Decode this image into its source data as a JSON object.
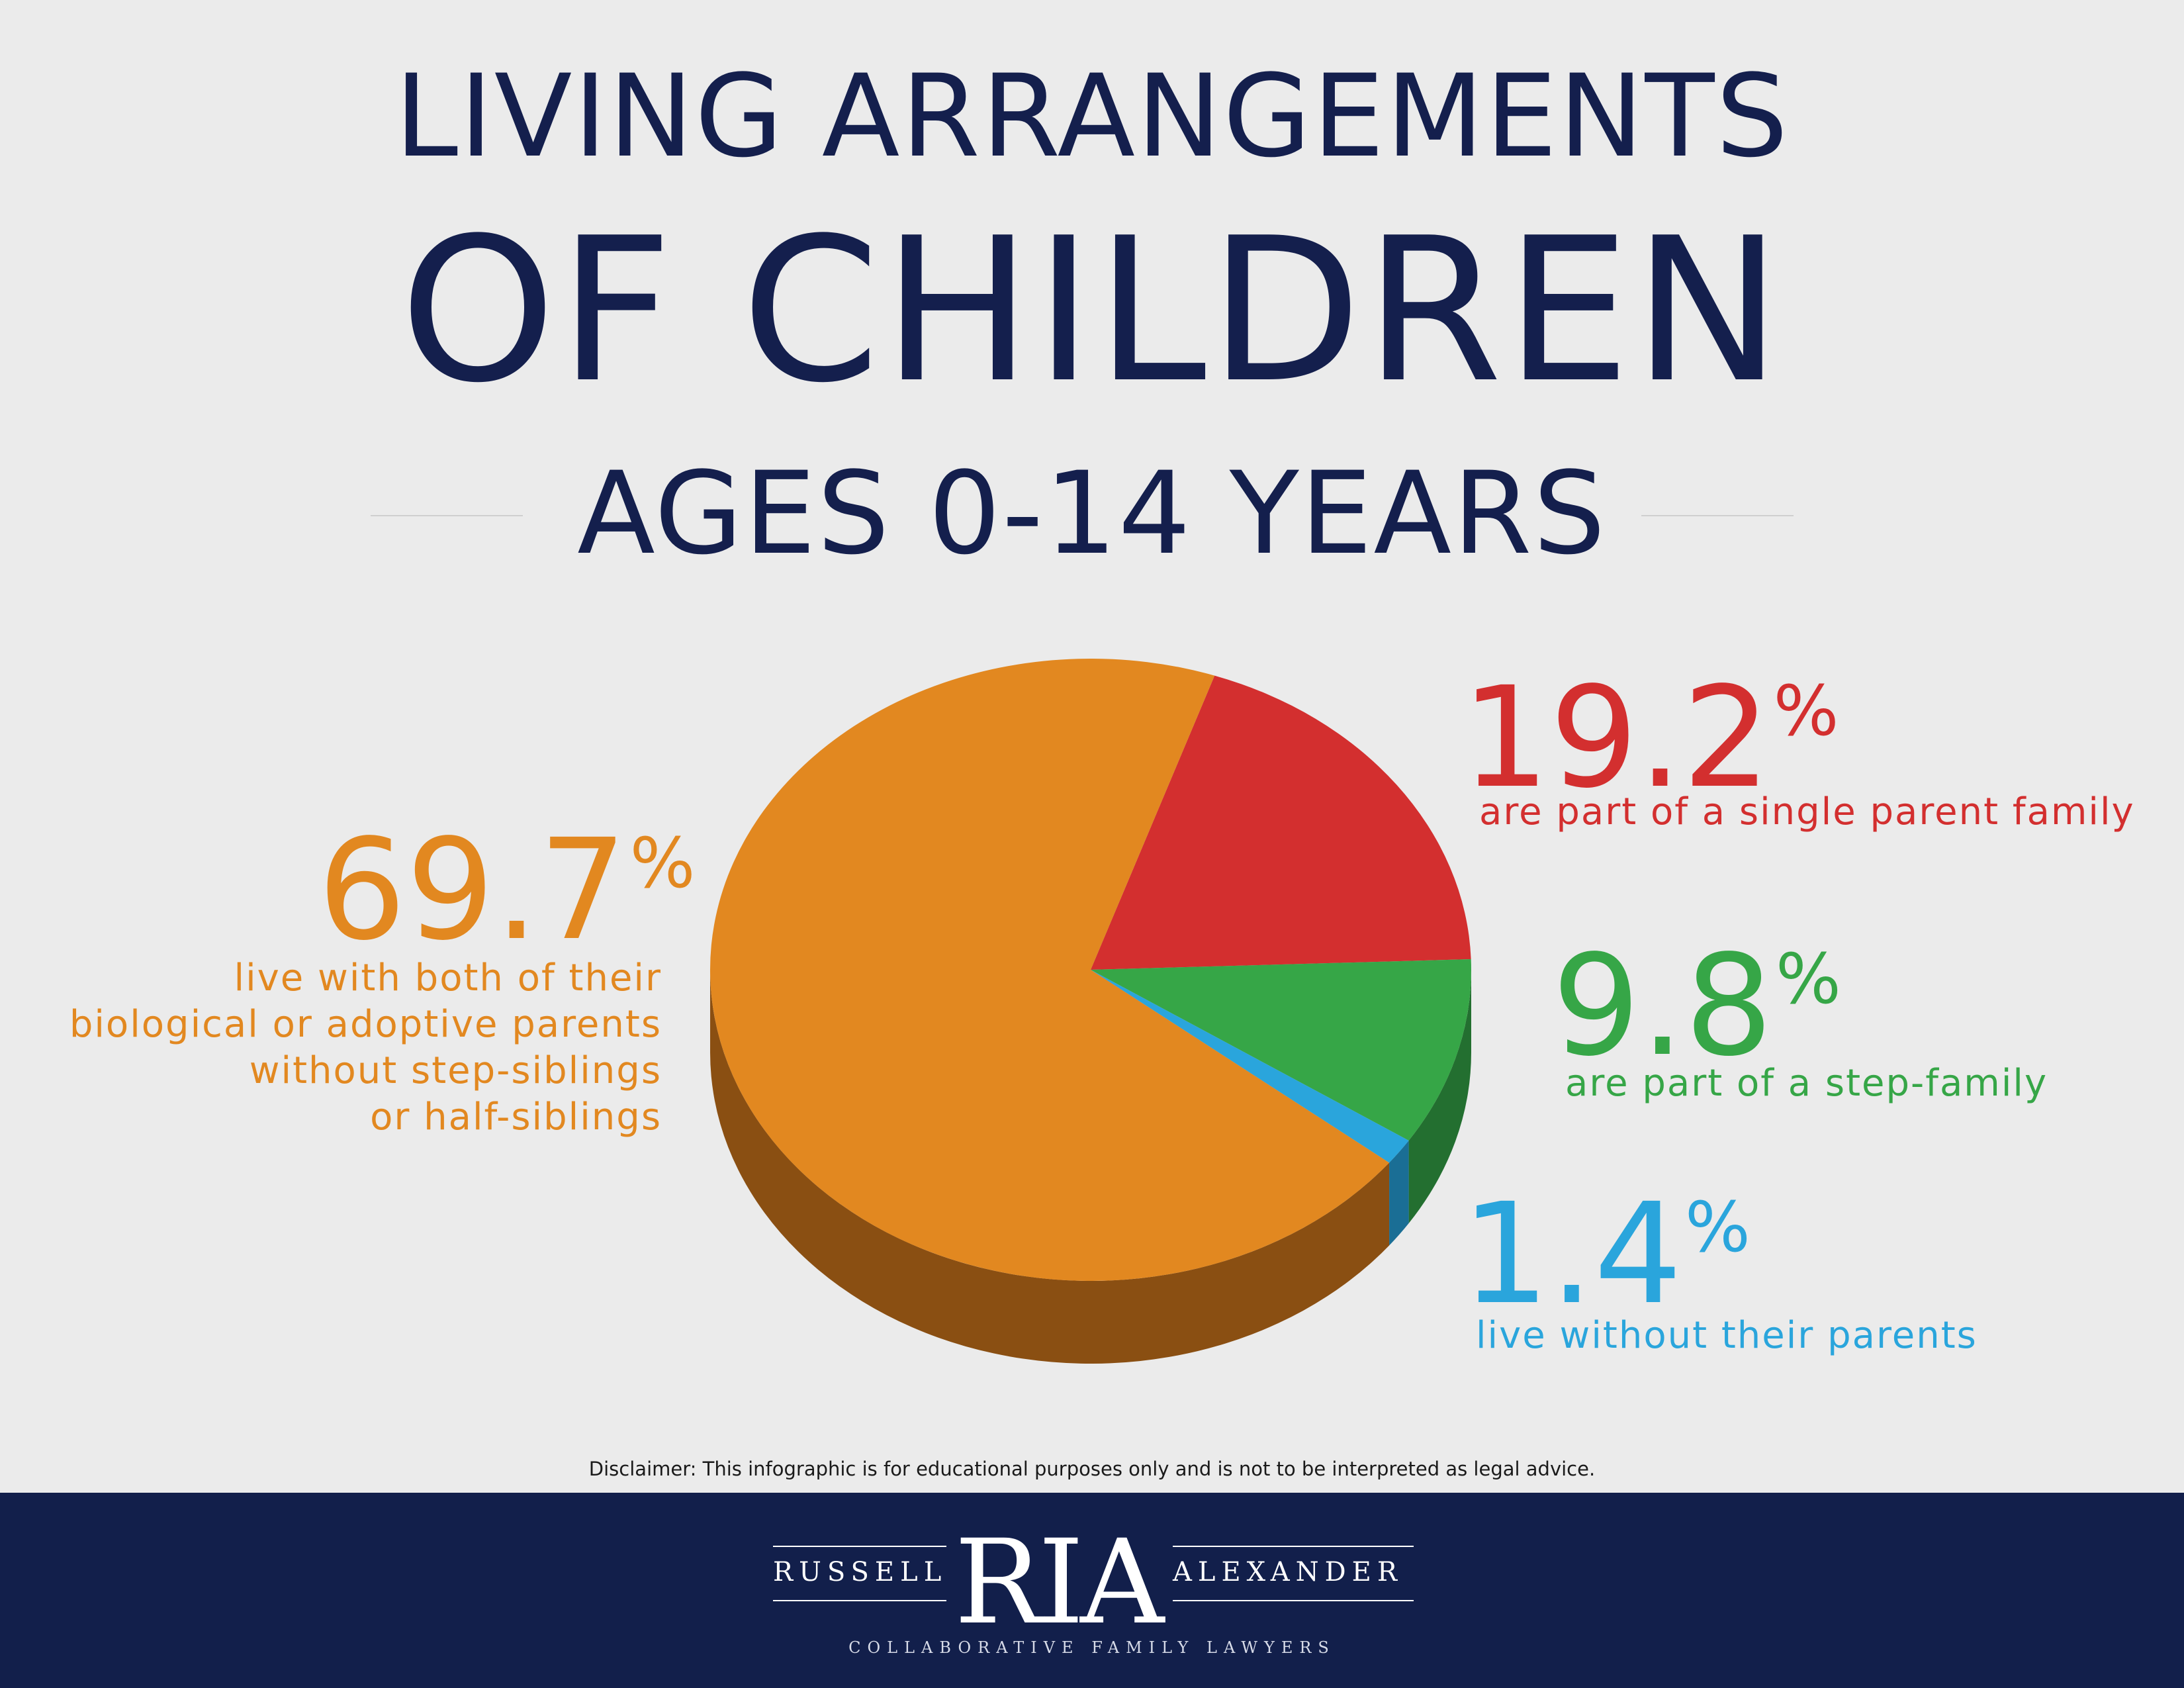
{
  "header": {
    "title_line1": "LIVING ARRANGEMENTS",
    "title_line2": "OF CHILDREN",
    "subtitle": "AGES 0-14 YEARS"
  },
  "colors": {
    "orange": "#e28820",
    "orange_side": "#8a4f12",
    "red": "#d32f2f",
    "red_side": "#8c1f1f",
    "green": "#36a647",
    "green_side": "#236f30",
    "blue": "#2aa5dc",
    "blue_side": "#1a6e95",
    "navy": "#121f4b"
  },
  "chart_data": {
    "type": "pie",
    "slices": [
      {
        "label": "live with both of their biological or adoptive parents without step-siblings or half-siblings",
        "value": 69.7,
        "color": "#e28820"
      },
      {
        "label": "are part of a single parent family",
        "value": 19.2,
        "color": "#d32f2f"
      },
      {
        "label": "are part of a step-family",
        "value": 9.8,
        "color": "#36a647"
      },
      {
        "label": "live without their parents",
        "value": 1.4,
        "color": "#2aa5dc"
      }
    ]
  },
  "callouts": {
    "orange": {
      "number": "69.7",
      "symbol": "%",
      "lines": [
        "live with both of their",
        "biological or adoptive parents",
        "without step-siblings",
        "or half-siblings"
      ]
    },
    "red": {
      "number": "19.2",
      "symbol": "%",
      "lines": [
        "are part of a single parent family"
      ]
    },
    "green": {
      "number": "9.8",
      "symbol": "%",
      "lines": [
        "are part of a step-family"
      ]
    },
    "blue": {
      "number": "1.4",
      "symbol": "%",
      "lines": [
        "live without their parents"
      ]
    }
  },
  "disclaimer": "Disclaimer: This infographic is for educational purposes only and is not to be interpreted as legal advice.",
  "footer": {
    "logo_left": "RUSSELL",
    "logo_center": "RIA",
    "logo_right": "ALEXANDER",
    "tagline": "COLLABORATIVE FAMILY LAWYERS"
  }
}
